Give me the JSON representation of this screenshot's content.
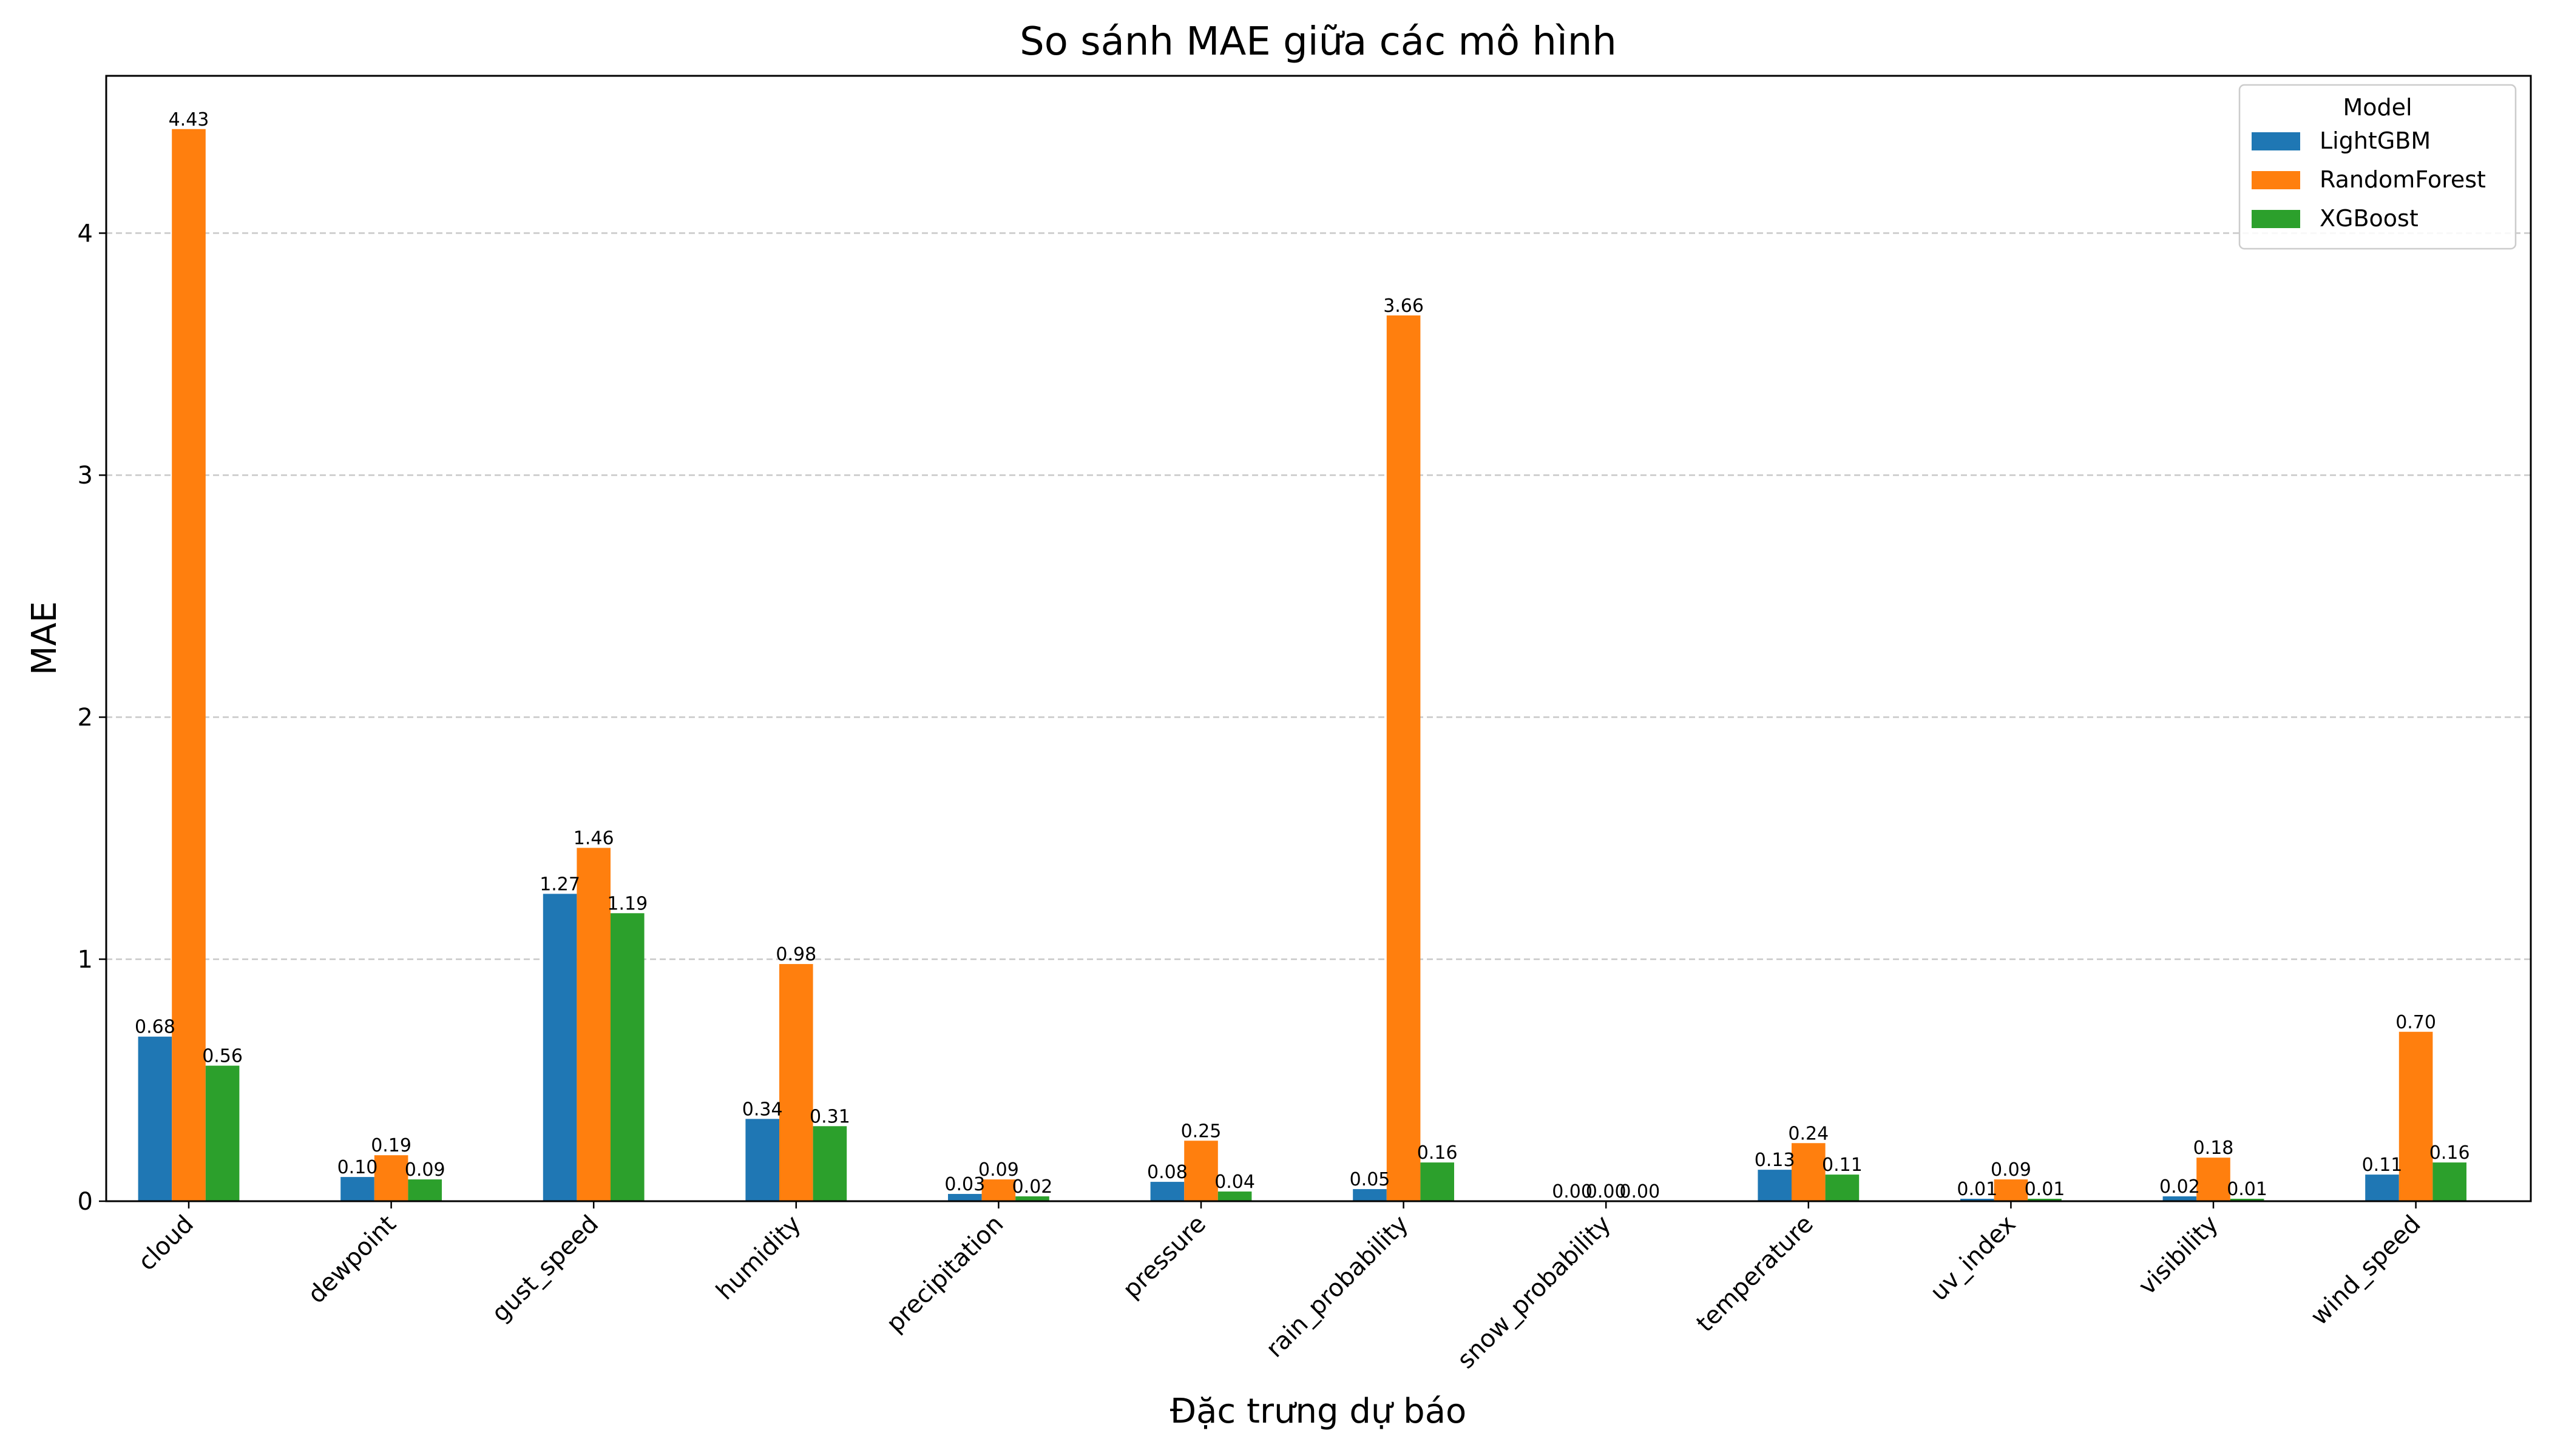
{
  "chart_data": {
    "type": "bar",
    "title": "So sánh MAE giữa các mô hình",
    "xlabel": "Đặc trưng dự báo",
    "ylabel": "MAE",
    "ylim": [
      0,
      4.65
    ],
    "yticks": [
      0,
      1,
      2,
      3,
      4
    ],
    "grid": "y-dashed",
    "legend_title": "Model",
    "legend_position": "top-right",
    "categories": [
      "cloud",
      "dewpoint",
      "gust_speed",
      "humidity",
      "precipitation",
      "pressure",
      "rain_probability",
      "snow_probability",
      "temperature",
      "uv_index",
      "visibility",
      "wind_speed"
    ],
    "series": [
      {
        "name": "LightGBM",
        "color": "#1f77b4",
        "values": [
          0.68,
          0.1,
          1.27,
          0.34,
          0.03,
          0.08,
          0.05,
          0.0,
          0.13,
          0.01,
          0.02,
          0.11
        ]
      },
      {
        "name": "RandomForest",
        "color": "#ff7f0e",
        "values": [
          4.43,
          0.19,
          1.46,
          0.98,
          0.09,
          0.25,
          3.66,
          0.0,
          0.24,
          0.09,
          0.18,
          0.7
        ]
      },
      {
        "name": "XGBoost",
        "color": "#2ca02c",
        "values": [
          0.56,
          0.09,
          1.19,
          0.31,
          0.02,
          0.04,
          0.16,
          0.0,
          0.11,
          0.01,
          0.01,
          0.16
        ]
      }
    ]
  }
}
